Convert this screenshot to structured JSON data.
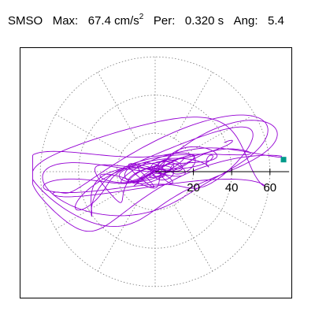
{
  "header": {
    "station": "SMSO",
    "max_label": "Max:",
    "max_value": "67.4",
    "max_unit_base": "cm/s",
    "max_unit_exp": "2",
    "per_label": "Per:",
    "per_value": "0.320 s",
    "ang_label": "Ang:",
    "ang_value": "5.4"
  },
  "chart_data": {
    "type": "polar-orbit",
    "title": "SMSO  Max: 67.4 cm/s2  Per: 0.320 s  Ang: 5.4",
    "max": 67.4,
    "max_unit": "cm/s2",
    "period_s": 0.32,
    "angle_deg": 5.4,
    "radial_range": [
      0,
      70
    ],
    "ring_values": [
      20,
      40,
      60
    ],
    "ring_style": "dotted",
    "spoke_angles_deg": [
      0,
      30,
      60,
      90,
      120,
      150,
      180,
      210,
      240,
      270,
      300,
      330
    ],
    "tick_labels": [
      "20",
      "40",
      "60"
    ],
    "grid": true,
    "trace_color": "#9400d3",
    "peak_marker": {
      "x": 67.1,
      "y": 6.3,
      "color": "#009a8a"
    }
  }
}
